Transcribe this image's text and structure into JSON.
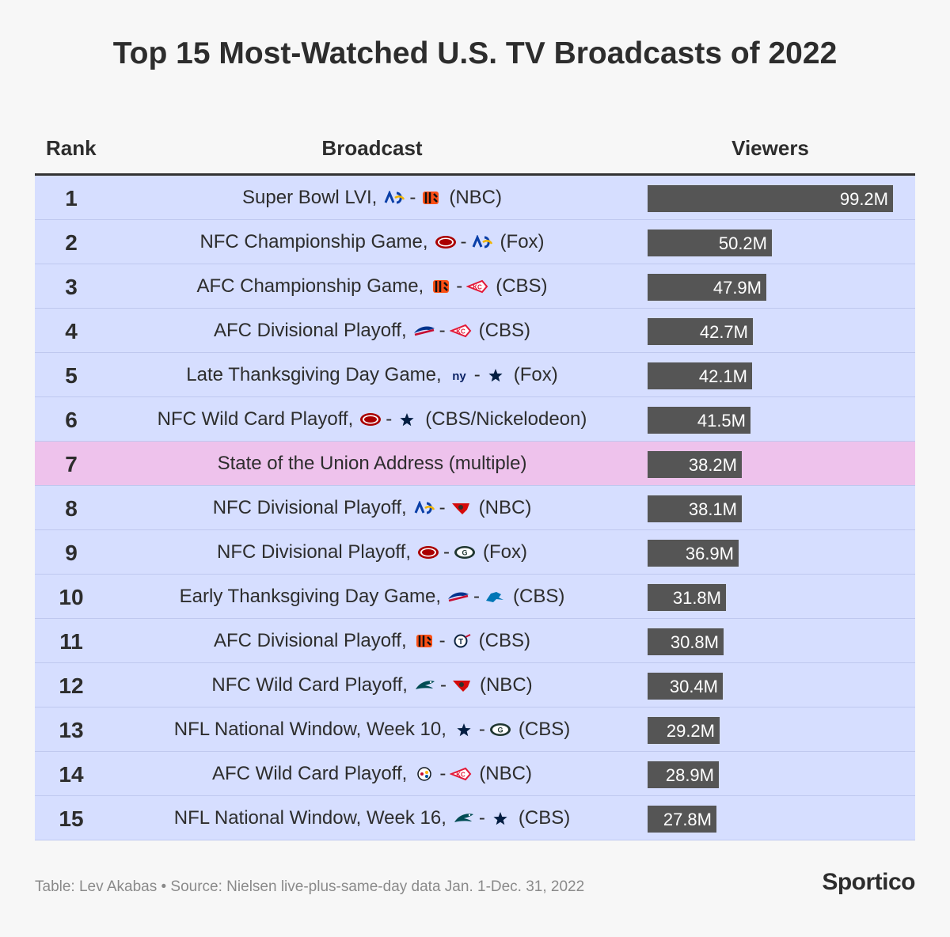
{
  "title": "Top 15 Most-Watched U.S. TV Broadcasts of 2022",
  "headers": {
    "rank": "Rank",
    "broadcast": "Broadcast",
    "viewers": "Viewers"
  },
  "separator": "-",
  "colors": {
    "row": "#d6deff",
    "highlight_row": "#eec2ec",
    "bar": "#555555"
  },
  "chart_data": {
    "type": "bar",
    "orientation": "horizontal",
    "unit": "M",
    "xlim": [
      0,
      99.2
    ],
    "rows": [
      {
        "rank": "1",
        "name": "Super Bowl LVI,",
        "teams": [
          "rams-logo",
          "bengals-logo"
        ],
        "network": "(NBC)",
        "value": 99.2,
        "label": "99.2M"
      },
      {
        "rank": "2",
        "name": "NFC Championship Game,",
        "teams": [
          "49ers-logo",
          "rams-logo"
        ],
        "network": "(Fox)",
        "value": 50.2,
        "label": "50.2M"
      },
      {
        "rank": "3",
        "name": "AFC Championship Game,",
        "teams": [
          "bengals-logo",
          "chiefs-logo"
        ],
        "network": "(CBS)",
        "value": 47.9,
        "label": "47.9M"
      },
      {
        "rank": "4",
        "name": "AFC Divisional Playoff,",
        "teams": [
          "bills-logo",
          "chiefs-logo"
        ],
        "network": "(CBS)",
        "value": 42.7,
        "label": "42.7M"
      },
      {
        "rank": "5",
        "name": "Late Thanksgiving Day Game,",
        "teams": [
          "giants-logo",
          "cowboys-logo"
        ],
        "network": "(Fox)",
        "value": 42.1,
        "label": "42.1M"
      },
      {
        "rank": "6",
        "name": "NFC Wild Card Playoff,",
        "teams": [
          "49ers-logo",
          "cowboys-logo"
        ],
        "network": "(CBS/Nickelodeon)",
        "value": 41.5,
        "label": "41.5M"
      },
      {
        "rank": "7",
        "name": "State of the Union Address (multiple)",
        "teams": [],
        "network": "",
        "value": 38.2,
        "label": "38.2M",
        "highlight": true
      },
      {
        "rank": "8",
        "name": "NFC Divisional Playoff,",
        "teams": [
          "rams-logo",
          "buccaneers-logo"
        ],
        "network": "(NBC)",
        "value": 38.1,
        "label": "38.1M"
      },
      {
        "rank": "9",
        "name": "NFC Divisional Playoff,",
        "teams": [
          "49ers-logo",
          "packers-logo"
        ],
        "network": "(Fox)",
        "value": 36.9,
        "label": "36.9M"
      },
      {
        "rank": "10",
        "name": "Early Thanksgiving Day Game,",
        "teams": [
          "bills-logo",
          "lions-logo"
        ],
        "network": "(CBS)",
        "value": 31.8,
        "label": "31.8M"
      },
      {
        "rank": "11",
        "name": "AFC Divisional Playoff,",
        "teams": [
          "bengals-logo",
          "titans-logo"
        ],
        "network": "(CBS)",
        "value": 30.8,
        "label": "30.8M"
      },
      {
        "rank": "12",
        "name": "NFC Wild Card Playoff,",
        "teams": [
          "eagles-logo",
          "buccaneers-logo"
        ],
        "network": "(NBC)",
        "value": 30.4,
        "label": "30.4M"
      },
      {
        "rank": "13",
        "name": "NFL National Window, Week 10,",
        "teams": [
          "cowboys-logo",
          "packers-logo"
        ],
        "network": "(CBS)",
        "value": 29.2,
        "label": "29.2M"
      },
      {
        "rank": "14",
        "name": "AFC Wild Card Playoff,",
        "teams": [
          "steelers-logo",
          "chiefs-logo"
        ],
        "network": "(NBC)",
        "value": 28.9,
        "label": "28.9M"
      },
      {
        "rank": "15",
        "name": "NFL National Window, Week 16,",
        "teams": [
          "eagles-logo",
          "cowboys-logo"
        ],
        "network": "(CBS)",
        "value": 27.8,
        "label": "27.8M"
      }
    ]
  },
  "footer": "Table: Lev Akabas • Source: Nielsen live-plus-same-day data Jan. 1-Dec. 31, 2022",
  "brand": "Sportico"
}
